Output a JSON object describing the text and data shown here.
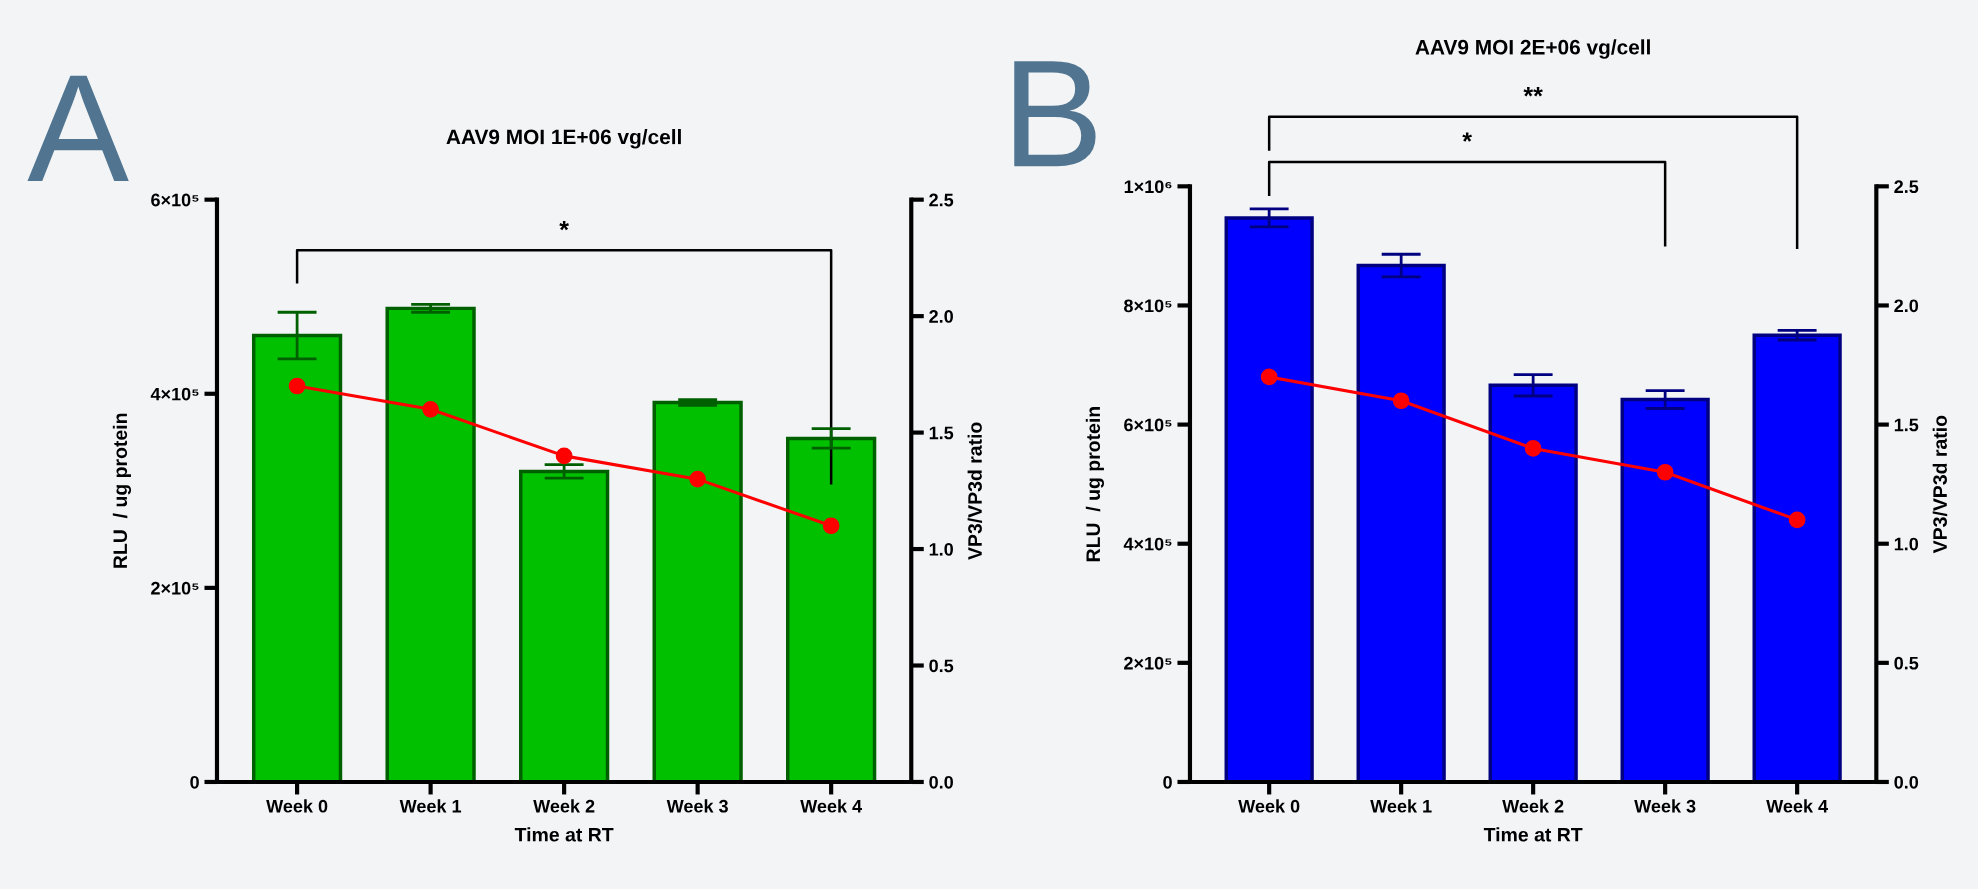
{
  "chart_data": [
    {
      "type": "bar",
      "title": "AAV9 MOI 1E+06 vg/cell",
      "xlabel": "Time at RT",
      "ylabel": "RLU  / ug protein",
      "y2label": "VP3/VP3d ratio",
      "categories": [
        "Week 0",
        "Week 1",
        "Week 2",
        "Week 3",
        "Week 4"
      ],
      "series": [
        {
          "color": "#00c000",
          "values": [
            460000,
            488000,
            320000,
            391000,
            354000
          ],
          "errors": [
            24000,
            4000,
            7000,
            3000,
            10000
          ]
        },
        {
          "type": "line",
          "axis": "y2",
          "color": "#ff0000",
          "marker": "circle",
          "values": [
            1.7,
            1.6,
            1.4,
            1.3,
            1.1
          ]
        }
      ],
      "ylim": [
        0,
        600000
      ],
      "yticks": [
        0,
        {
          "value": 200000,
          "label": "2×10⁵"
        },
        {
          "value": 400000,
          "label": "4×10⁵"
        },
        {
          "value": 600000,
          "label": "6×10⁵"
        }
      ],
      "y2lim": [
        0,
        2.5
      ],
      "y2ticks": [
        {
          "value": 0,
          "label": "0.0"
        },
        0.5,
        {
          "value": 1,
          "label": "1.0"
        },
        1.5,
        {
          "value": 2,
          "label": "2.0"
        },
        2.5
      ],
      "grid": false,
      "legend": false,
      "annotations": [
        "A",
        "*"
      ]
    },
    {
      "type": "bar",
      "title": "AAV9 MOI 2E+06 vg/cell",
      "xlabel": "Time at RT",
      "ylabel": "RLU  / ug protein",
      "y2label": "VP3/VP3d ratio",
      "categories": [
        "Week 0",
        "Week 1",
        "Week 2",
        "Week 3",
        "Week 4"
      ],
      "series": [
        {
          "color": "#0000ff",
          "values": [
            947000,
            867000,
            666000,
            642000,
            750000
          ],
          "errors": [
            15000,
            19000,
            18000,
            15000,
            8000
          ]
        },
        {
          "type": "line",
          "axis": "y2",
          "color": "#ff0000",
          "marker": "circle",
          "values": [
            1.7,
            1.6,
            1.4,
            1.3,
            1.1
          ]
        }
      ],
      "ylim": [
        0,
        1000000
      ],
      "yticks": [
        0,
        {
          "value": 200000,
          "label": "2×10⁵"
        },
        {
          "value": 400000,
          "label": "4×10⁵"
        },
        {
          "value": 600000,
          "label": "6×10⁵"
        },
        {
          "value": 800000,
          "label": "8×10⁵"
        },
        {
          "value": 1000000,
          "label": "1×10⁶"
        }
      ],
      "y2lim": [
        0,
        2.5
      ],
      "y2ticks": [
        {
          "value": 0,
          "label": "0.0"
        },
        0.5,
        {
          "value": 1,
          "label": "1.0"
        },
        1.5,
        {
          "value": 2,
          "label": "2.0"
        },
        2.5
      ],
      "grid": false,
      "legend": false,
      "annotations": [
        "B",
        "*",
        "**"
      ]
    }
  ]
}
